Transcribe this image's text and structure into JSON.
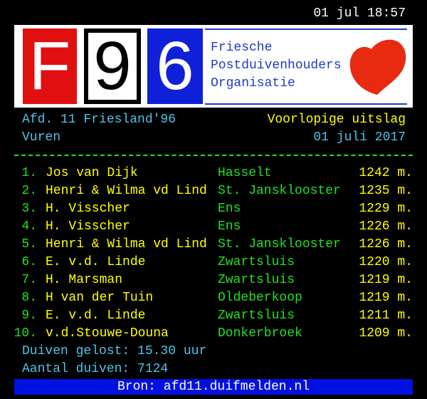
{
  "header": {
    "time": "01 jul 18:57"
  },
  "logo": {
    "letters": [
      "F",
      "9",
      "6"
    ],
    "org": [
      "Friesche",
      "Postduivenhouders",
      "Organisatie"
    ]
  },
  "info": {
    "division": "Afd. 11 Friesland'96",
    "result_type": "Voorlopige uitslag",
    "release_place": "Vuren",
    "date": "01 juli 2017"
  },
  "table": {
    "rows": [
      [
        "1.",
        "Jos van Dijk",
        "Hasselt",
        "1242 m."
      ],
      [
        "2.",
        "Henri & Wilma vd Lind",
        "St. Jansklooster",
        "1235 m."
      ],
      [
        "3.",
        "H. Visscher",
        "Ens",
        "1229 m."
      ],
      [
        "4.",
        "H. Visscher",
        "Ens",
        "1226 m."
      ],
      [
        "5.",
        "Henri & Wilma vd Lind",
        "St. Jansklooster",
        "1226 m."
      ],
      [
        "6.",
        "E. v.d. Linde",
        "Zwartsluis",
        "1220 m."
      ],
      [
        "7.",
        "H. Marsman",
        "Zwartsluis",
        "1219 m."
      ],
      [
        "8.",
        "H van der Tuin",
        "Oldeberkoop",
        "1219 m."
      ],
      [
        "9.",
        "E. v.d. Linde",
        "Zwartsluis",
        "1211 m."
      ],
      [
        "10.",
        "v.d.Stouwe-Douna",
        "Donkerbroek",
        "1209 m."
      ]
    ]
  },
  "footer": {
    "released": "Duiven gelost: 15.30 uur",
    "count": "Aantal duiven: 7124",
    "source": "Bron: afd11.duifmelden.nl"
  }
}
